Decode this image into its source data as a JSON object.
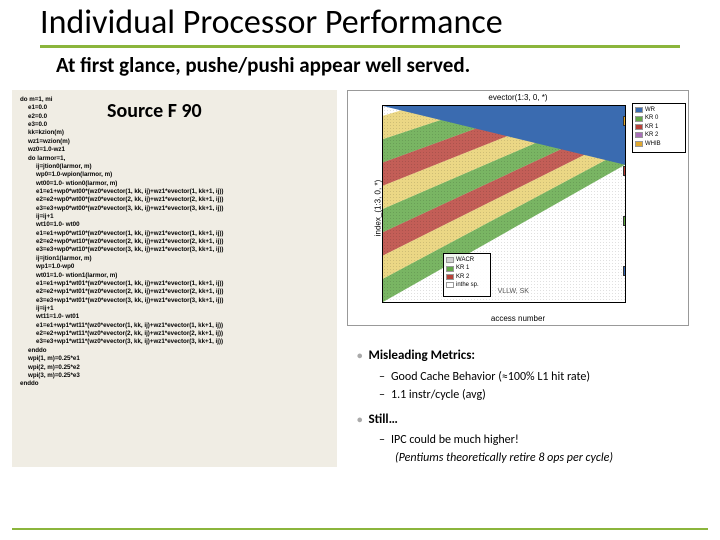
{
  "title": "Individual Processor Performance",
  "subtitle": "At first glance, pushe/pushi appear well served.",
  "code_panel_title": "Source F 90",
  "code_lines": [
    {
      "t": "do m=1, mi",
      "i": 0
    },
    {
      "t": "e1=0.0",
      "i": 1
    },
    {
      "t": "e2=0.0",
      "i": 1
    },
    {
      "t": "e3=0.0",
      "i": 1
    },
    {
      "t": "kk=kzion(m)",
      "i": 1
    },
    {
      "t": "wz1=wzion(m)",
      "i": 1
    },
    {
      "t": "wz0=1.0-wz1",
      "i": 1
    },
    {
      "t": "do larmor=1,",
      "i": 1
    },
    {
      "t": "ij=jtion0(larmor, m)",
      "i": 2
    },
    {
      "t": "wp0=1.0-wpion(larmor, m)",
      "i": 2
    },
    {
      "t": "wt00=1.0- wtion0(larmor, m)",
      "i": 2
    },
    {
      "t": "e1=e1+wp0*wt00*(wz0*evector(1, kk, ij)+wz1*evector(1, kk+1, ij))",
      "i": 2
    },
    {
      "t": "e2=e2+wp0*wt00*(wz0*evector(2, kk, ij)+wz1*evector(2, kk+1, ij))",
      "i": 2
    },
    {
      "t": "e3=e3+wp0*wt00*(wz0*evector(3, kk, ij)+wz1*evector(3, kk+1, ij))",
      "i": 2
    },
    {
      "t": "ij=ij+1",
      "i": 2
    },
    {
      "t": "wt10=1.0- wt00",
      "i": 2
    },
    {
      "t": "e1=e1+wp0*wt10*(wz0*evector(1, kk, ij)+wz1*evector(1, kk+1, ij))",
      "i": 2
    },
    {
      "t": "e2=e2+wp0*wt10*(wz0*evector(2, kk, ij)+wz1*evector(2, kk+1, ij))",
      "i": 2
    },
    {
      "t": "e3=e3+wp0*wt10*(wz0*evector(3, kk, ij)+wz1*evector(3, kk+1, ij))",
      "i": 2
    },
    {
      "t": "ij=jtion1(larmor, m)",
      "i": 2
    },
    {
      "t": "wp1=1.0-wp0",
      "i": 2
    },
    {
      "t": "wt01=1.0- wtion1(larmor, m)",
      "i": 2
    },
    {
      "t": "e1=e1+wp1*wt01*(wz0*evector(1, kk, ij)+wz1*evector(1, kk+1, ij))",
      "i": 2
    },
    {
      "t": "e2=e2+wp1*wt01*(wz0*evector(2, kk, ij)+wz1*evector(2, kk+1, ij))",
      "i": 2
    },
    {
      "t": "e3=e3+wp1*wt01*(wz0*evector(3, kk, ij)+wz1*evector(3, kk+1, ij))",
      "i": 2
    },
    {
      "t": "ij=ij+1",
      "i": 2
    },
    {
      "t": "wt11=1.0- wt01",
      "i": 2
    },
    {
      "t": "e1=e1+wp1*wt11*(wz0*evector(1, kk, ij)+wz1*evector(1, kk+1, ij))",
      "i": 2
    },
    {
      "t": "e2=e2+wp1*wt11*(wz0*evector(2, kk, ij)+wz1*evector(2, kk+1, ij))",
      "i": 2
    },
    {
      "t": "e3=e3+wp1*wt11*(wz0*evector(3, kk, ij)+wz1*evector(3, kk+1, ij))",
      "i": 2
    },
    {
      "t": "enddo",
      "i": 1
    },
    {
      "t": "",
      "i": 1
    },
    {
      "t": "wpi(1, m)=0.25*e1",
      "i": 1
    },
    {
      "t": "wpi(2, m)=0.25*e2",
      "i": 1
    },
    {
      "t": "wpi(3, m)=0.25*e3",
      "i": 1
    },
    {
      "t": "enddo",
      "i": 0
    }
  ],
  "chart": {
    "title": "evector(1:3, 0, *)",
    "yaxis_label": "index_(1:3, 0, *)",
    "xaxis_label": "access number",
    "x_tick": "VLLW, SK",
    "legend1": [
      {
        "label": "WR",
        "color": "#3a6bb0"
      },
      {
        "label": "KR 0",
        "color": "#62a848"
      },
      {
        "label": "KR 1",
        "color": "#b8423a"
      },
      {
        "label": "KR 2",
        "color": "#a870b8"
      },
      {
        "label": "WHIB",
        "color": "#e0a830"
      }
    ],
    "legend2": [
      {
        "label": "WACR",
        "color": "#d0d0d0"
      },
      {
        "label": "KR 1",
        "color": "#62a848"
      },
      {
        "label": "KR 2",
        "color": "#b8423a"
      },
      {
        "label": "inthe sp.",
        "color": "#ffffff"
      }
    ],
    "stripe_colors": [
      "#62a848",
      "#e8d070",
      "#b8423a",
      "#62a848",
      "#e8d070",
      "#b8423a",
      "#62a848",
      "#e8d070"
    ],
    "upper_fill": "#3a6bb0",
    "marker_colors": [
      "#e0a830",
      "#b8423a",
      "#62a848",
      "#3a6bb0"
    ],
    "marker_tops": [
      10,
      60,
      110,
      160
    ]
  },
  "bullets": {
    "main1": "Misleading Metrics:",
    "sub1a": "Good Cache Behavior (≈100% L1 hit rate)",
    "sub1b": "1.1 instr/cycle (avg)",
    "main2": "Still…",
    "sub2a": "IPC could be much higher!",
    "sub2b": "(Pentiums theoretically retire 8 ops per cycle)"
  }
}
